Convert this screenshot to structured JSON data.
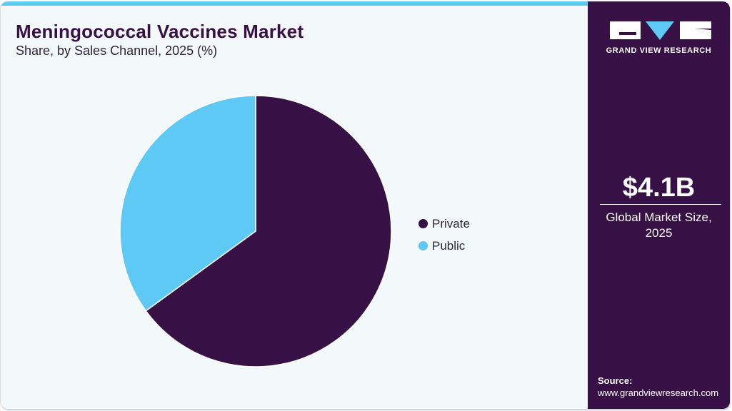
{
  "header": {
    "title": "Meningococcal Vaccines Market",
    "subtitle": "Share, by Sales Channel, 2025 (%)"
  },
  "legend": [
    {
      "label": "Private",
      "color": "#371046"
    },
    {
      "label": "Public",
      "color": "#5ec9f5"
    }
  ],
  "sidebar": {
    "brand": "GRAND VIEW RESEARCH",
    "kpi_value": "$4.1B",
    "kpi_label_line1": "Global Market Size,",
    "kpi_label_line2": "2025",
    "source_heading": "Source:",
    "source_url": "www.grandviewresearch.com"
  },
  "colors": {
    "accent_dark": "#371046",
    "accent_light": "#5ec9f5",
    "background": "#f3f8fb"
  },
  "chart_data": {
    "type": "pie",
    "title": "Meningococcal Vaccines Market",
    "subtitle": "Share, by Sales Channel, 2025 (%)",
    "categories": [
      "Private",
      "Public"
    ],
    "values": [
      65,
      35
    ],
    "colors": [
      "#371046",
      "#5ec9f5"
    ],
    "start_angle_deg": 0,
    "direction": "clockwise",
    "legend_position": "right",
    "annotations": [
      "$4.1B Global Market Size, 2025"
    ]
  }
}
